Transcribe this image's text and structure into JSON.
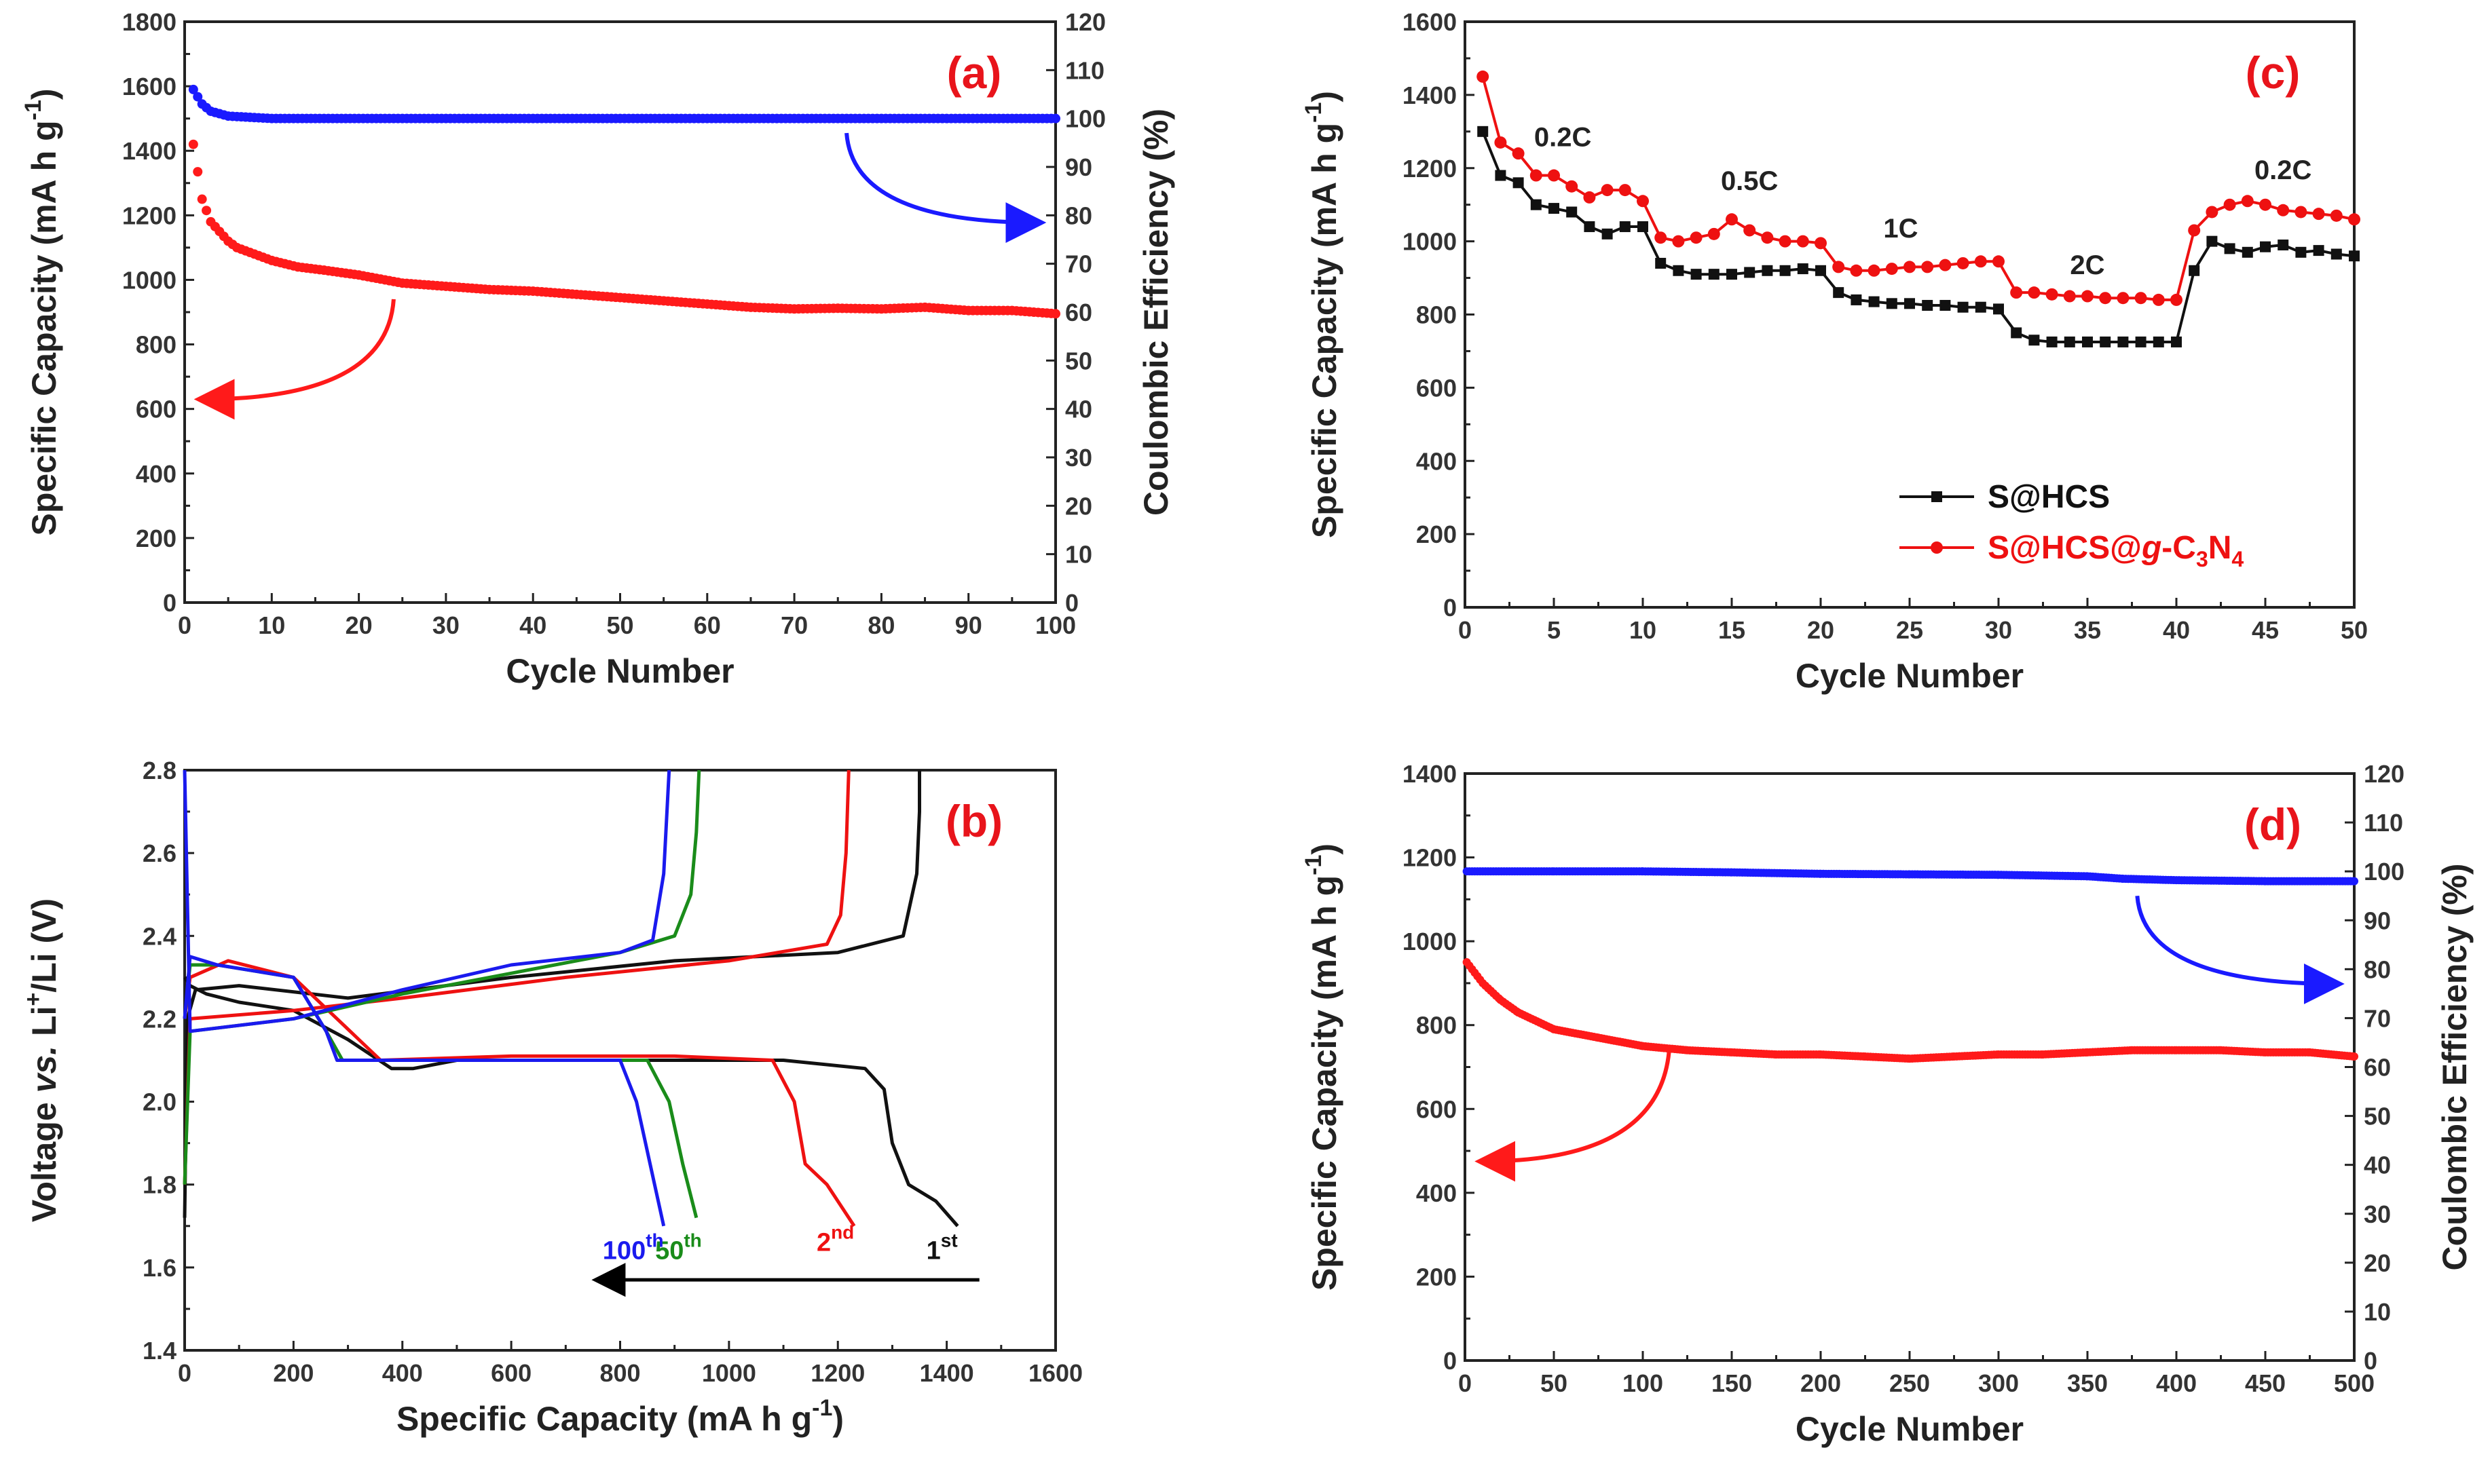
{
  "chart_data": [
    {
      "id": "a",
      "type": "scatter",
      "panel_label": "(a)",
      "xlabel": "Cycle Number",
      "ylabel": "Specific Capacity (mA h g",
      "ylabel_sup": "-1",
      "ylabel_end": ")",
      "y2label": "Coulombic Efficiency (%)",
      "xlim": [
        0,
        100
      ],
      "ylim": [
        0,
        1800
      ],
      "y2lim": [
        0,
        120
      ],
      "xticks": [
        0,
        10,
        20,
        30,
        40,
        50,
        60,
        70,
        80,
        90,
        100
      ],
      "yticks": [
        0,
        200,
        400,
        600,
        800,
        1000,
        1200,
        1400,
        1600,
        1800
      ],
      "y2ticks": [
        0,
        10,
        20,
        30,
        40,
        50,
        60,
        70,
        80,
        90,
        100,
        110,
        120
      ],
      "series": [
        {
          "name": "Specific Capacity",
          "axis": "left",
          "color": "#ff1a1a",
          "x": [
            1,
            2,
            3,
            4,
            5,
            6,
            8,
            10,
            13,
            16,
            20,
            25,
            30,
            35,
            40,
            45,
            50,
            55,
            60,
            65,
            70,
            75,
            80,
            85,
            90,
            95,
            100
          ],
          "y": [
            1420,
            1250,
            1180,
            1150,
            1120,
            1100,
            1080,
            1060,
            1040,
            1030,
            1015,
            990,
            980,
            970,
            965,
            955,
            945,
            935,
            925,
            915,
            910,
            912,
            910,
            915,
            905,
            905,
            895
          ]
        },
        {
          "name": "Coulombic Efficiency",
          "axis": "right",
          "color": "#1a1aff",
          "x": [
            1,
            2,
            3,
            5,
            10,
            20,
            30,
            40,
            50,
            60,
            70,
            80,
            90,
            100
          ],
          "y": [
            106,
            103,
            101.5,
            100.5,
            100,
            100,
            100,
            100,
            100,
            100,
            100,
            100,
            100,
            100
          ]
        }
      ],
      "arrows": [
        {
          "color": "#ff1a1a",
          "from": [
            24,
            940
          ],
          "to": [
            2,
            630
          ]
        },
        {
          "color": "#1a1aff",
          "from": [
            76,
            97
          ],
          "to": [
            98,
            78.5
          ]
        }
      ]
    },
    {
      "id": "b",
      "type": "line",
      "panel_label": "(b)",
      "xlabel": "Specific Capacity (mA h g",
      "xlabel_sup": "-1",
      "xlabel_end": ")",
      "ylabel_parts": [
        "Voltage ",
        "vs.",
        " Li",
        "+",
        "/Li (V)"
      ],
      "xlim": [
        0,
        1600
      ],
      "ylim": [
        1.4,
        2.8
      ],
      "xticks": [
        0,
        200,
        400,
        600,
        800,
        1000,
        1200,
        1400,
        1600
      ],
      "yticks": [
        1.4,
        1.6,
        1.8,
        2.0,
        2.2,
        2.4,
        2.6,
        2.8
      ],
      "curves": [
        {
          "label": "1",
          "label_sup": "st",
          "color": "#111111",
          "discharge": {
            "x": [
              0,
              10,
              40,
              100,
              200,
              300,
              380,
              420,
              500,
              800,
              1100,
              1250,
              1285,
              1300,
              1330,
              1380,
              1420
            ],
            "y": [
              2.3,
              2.28,
              2.26,
              2.24,
              2.22,
              2.15,
              2.08,
              2.08,
              2.1,
              2.1,
              2.1,
              2.08,
              2.03,
              1.9,
              1.8,
              1.76,
              1.7
            ]
          },
          "charge": {
            "x": [
              0,
              5,
              20,
              100,
              300,
              600,
              900,
              1200,
              1320,
              1345,
              1350,
              1350
            ],
            "y": [
              1.72,
              2.2,
              2.27,
              2.28,
              2.25,
              2.3,
              2.34,
              2.36,
              2.4,
              2.55,
              2.7,
              2.8
            ]
          }
        },
        {
          "label": "2",
          "label_sup": "nd",
          "color": "#ee1111",
          "discharge": {
            "x": [
              0,
              10,
              80,
              200,
              280,
              320,
              360,
              600,
              900,
              1080,
              1120,
              1140,
              1180,
              1230
            ],
            "y": [
              2.2,
              2.3,
              2.34,
              2.3,
              2.2,
              2.15,
              2.1,
              2.11,
              2.11,
              2.1,
              2.0,
              1.85,
              1.8,
              1.7
            ]
          },
          "charge": {
            "x": [
              0,
              10,
              200,
              400,
              700,
              1000,
              1180,
              1205,
              1215,
              1220
            ],
            "y": [
              1.8,
              2.2,
              2.22,
              2.25,
              2.3,
              2.34,
              2.38,
              2.45,
              2.6,
              2.8
            ]
          }
        },
        {
          "label": "50",
          "label_sup": "th",
          "color": "#1a8c1a",
          "discharge": {
            "x": [
              0,
              10,
              60,
              200,
              260,
              290,
              600,
              850,
              890,
              915,
              940
            ],
            "y": [
              2.2,
              2.33,
              2.33,
              2.3,
              2.17,
              2.1,
              2.1,
              2.1,
              2.0,
              1.85,
              1.72
            ]
          },
          "charge": {
            "x": [
              0,
              10,
              200,
              400,
              600,
              800,
              900,
              930,
              940,
              945
            ],
            "y": [
              1.8,
              2.17,
              2.2,
              2.26,
              2.31,
              2.36,
              2.4,
              2.5,
              2.65,
              2.8
            ]
          }
        },
        {
          "label": "100",
          "label_sup": "th",
          "color": "#1a1aee",
          "discharge": {
            "x": [
              0,
              10,
              60,
              200,
              260,
              280,
              600,
              800,
              830,
              855,
              880
            ],
            "y": [
              2.2,
              2.35,
              2.33,
              2.3,
              2.17,
              2.1,
              2.1,
              2.1,
              2.0,
              1.85,
              1.7
            ]
          },
          "charge": {
            "x": [
              0,
              10,
              200,
              400,
              600,
              800,
              860,
              880,
              890
            ],
            "y": [
              2.8,
              2.17,
              2.2,
              2.27,
              2.33,
              2.36,
              2.39,
              2.55,
              2.8
            ]
          }
        }
      ],
      "arrow": {
        "color": "#000000",
        "from": [
          1460,
          1.57
        ],
        "to": [
          760,
          1.57
        ]
      }
    },
    {
      "id": "c",
      "type": "line",
      "panel_label": "(c)",
      "xlabel": "Cycle Number",
      "ylabel": "Specific Capacity (mA h g",
      "ylabel_sup": "-1",
      "ylabel_end": ")",
      "xlim": [
        0,
        50
      ],
      "ylim": [
        0,
        1600
      ],
      "xticks": [
        0,
        5,
        10,
        15,
        20,
        25,
        30,
        35,
        40,
        45,
        50
      ],
      "yticks": [
        0,
        200,
        400,
        600,
        800,
        1000,
        1200,
        1400,
        1600
      ],
      "rate_labels": [
        {
          "text": "0.2C",
          "x": 5.5,
          "y": 1260
        },
        {
          "text": "0.5C",
          "x": 16.0,
          "y": 1140
        },
        {
          "text": "1C",
          "x": 24.5,
          "y": 1010
        },
        {
          "text": "2C",
          "x": 35.0,
          "y": 910
        },
        {
          "text": "0.2C",
          "x": 46.0,
          "y": 1170
        }
      ],
      "series": [
        {
          "name": "S@HCS",
          "color": "#111111",
          "marker": "square",
          "x": [
            1,
            2,
            3,
            4,
            5,
            6,
            7,
            8,
            9,
            10,
            11,
            12,
            13,
            14,
            15,
            16,
            17,
            18,
            19,
            20,
            21,
            22,
            23,
            24,
            25,
            26,
            27,
            28,
            29,
            30,
            31,
            32,
            33,
            34,
            35,
            36,
            37,
            38,
            39,
            40,
            41,
            42,
            43,
            44,
            45,
            46,
            47,
            48,
            49,
            50
          ],
          "y": [
            1300,
            1180,
            1160,
            1100,
            1090,
            1080,
            1040,
            1020,
            1040,
            1040,
            940,
            920,
            910,
            910,
            910,
            915,
            920,
            920,
            925,
            920,
            860,
            840,
            835,
            830,
            830,
            825,
            825,
            820,
            820,
            815,
            750,
            730,
            725,
            725,
            725,
            725,
            725,
            725,
            725,
            725,
            920,
            1000,
            980,
            970,
            985,
            990,
            970,
            975,
            965,
            960
          ]
        },
        {
          "name": "S@HCS@",
          "name_italic": "g",
          "name_tail": "-C",
          "name_sub1": "3",
          "name_mid": "N",
          "name_sub2": "4",
          "color": "#ee1111",
          "marker": "circle",
          "x": [
            1,
            2,
            3,
            4,
            5,
            6,
            7,
            8,
            9,
            10,
            11,
            12,
            13,
            14,
            15,
            16,
            17,
            18,
            19,
            20,
            21,
            22,
            23,
            24,
            25,
            26,
            27,
            28,
            29,
            30,
            31,
            32,
            33,
            34,
            35,
            36,
            37,
            38,
            39,
            40,
            41,
            42,
            43,
            44,
            45,
            46,
            47,
            48,
            49,
            50
          ],
          "y": [
            1450,
            1270,
            1240,
            1180,
            1180,
            1150,
            1120,
            1140,
            1140,
            1110,
            1010,
            1000,
            1010,
            1020,
            1060,
            1030,
            1010,
            1000,
            1000,
            995,
            930,
            920,
            920,
            925,
            930,
            930,
            935,
            940,
            945,
            945,
            860,
            860,
            855,
            850,
            850,
            845,
            845,
            845,
            840,
            840,
            1030,
            1080,
            1100,
            1110,
            1100,
            1085,
            1080,
            1075,
            1070,
            1060
          ]
        }
      ],
      "legend_position": "lower-right"
    },
    {
      "id": "d",
      "type": "scatter",
      "panel_label": "(d)",
      "xlabel": "Cycle Number",
      "ylabel": "Specific Capacity (mA h g",
      "ylabel_sup": "-1",
      "ylabel_end": ")",
      "y2label": "Coulombic Efficiency (%)",
      "xlim": [
        0,
        500
      ],
      "ylim": [
        0,
        1400
      ],
      "y2lim": [
        0,
        120
      ],
      "xticks": [
        0,
        50,
        100,
        150,
        200,
        250,
        300,
        350,
        400,
        450,
        500
      ],
      "yticks": [
        0,
        200,
        400,
        600,
        800,
        1000,
        1200,
        1400
      ],
      "y2ticks": [
        0,
        10,
        20,
        30,
        40,
        50,
        60,
        70,
        80,
        90,
        100,
        110,
        120
      ],
      "series": [
        {
          "name": "Specific Capacity",
          "axis": "left",
          "color": "#ff1a1a",
          "x": [
            1,
            10,
            20,
            30,
            50,
            75,
            100,
            125,
            150,
            175,
            200,
            225,
            250,
            275,
            300,
            325,
            350,
            375,
            400,
            425,
            450,
            475,
            500
          ],
          "y": [
            950,
            900,
            860,
            830,
            790,
            770,
            750,
            740,
            735,
            730,
            730,
            725,
            720,
            725,
            730,
            730,
            735,
            740,
            740,
            740,
            735,
            735,
            725
          ]
        },
        {
          "name": "Coulombic Efficiency",
          "axis": "right",
          "color": "#1a1aff",
          "x": [
            1,
            50,
            100,
            150,
            200,
            250,
            300,
            350,
            370,
            400,
            450,
            500
          ],
          "y": [
            100,
            100,
            100,
            99.8,
            99.5,
            99.4,
            99.3,
            99,
            98.5,
            98.2,
            98,
            98
          ]
        }
      ],
      "arrows": [
        {
          "color": "#ff1a1a",
          "from": [
            115,
            750
          ],
          "to": [
            10,
            475
          ]
        },
        {
          "color": "#1a1aff",
          "from": [
            378,
            95
          ],
          "to": [
            490,
            77
          ]
        }
      ]
    }
  ]
}
